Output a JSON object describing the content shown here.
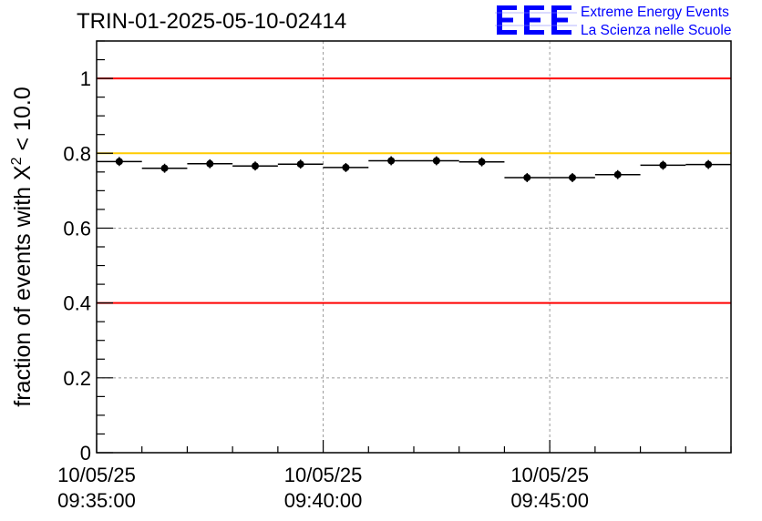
{
  "title": "TRIN-01-2025-05-10-02414",
  "logo": {
    "mark": "EEE",
    "line1": "Extreme Energy Events",
    "line2": "La Scienza nelle Scuole",
    "color": "#0000ff"
  },
  "chart_data": {
    "type": "scatter",
    "ylabel": "fraction of events with X² < 10.0",
    "ylabel_parts": {
      "prefix": "fraction of events with ",
      "chi": "X",
      "sup": "2",
      "suffix": " < 10.0"
    },
    "ylim": [
      0,
      1.1
    ],
    "yticks": [
      0,
      0.2,
      0.4,
      0.6,
      0.8,
      1
    ],
    "ytick_labels": [
      "0",
      "0.2",
      "0.4",
      "0.6",
      "0.8",
      "1"
    ],
    "xlim_minutes": [
      0,
      14
    ],
    "xtick_minutes": [
      0,
      5,
      10
    ],
    "xtick_labels": [
      [
        "10/05/25",
        "09:35:00"
      ],
      [
        "10/05/25",
        "09:40:00"
      ],
      [
        "10/05/25",
        "09:45:00"
      ]
    ],
    "grid": true,
    "reference_lines": [
      {
        "y": 1.0,
        "color": "#ff0000"
      },
      {
        "y": 0.8,
        "color": "#ffcc00"
      },
      {
        "y": 0.4,
        "color": "#ff0000"
      }
    ],
    "bin_width_minutes": 1,
    "points": [
      {
        "x": 0.5,
        "y": 0.778
      },
      {
        "x": 1.5,
        "y": 0.76
      },
      {
        "x": 2.5,
        "y": 0.772
      },
      {
        "x": 3.5,
        "y": 0.766
      },
      {
        "x": 4.5,
        "y": 0.771
      },
      {
        "x": 5.5,
        "y": 0.762
      },
      {
        "x": 6.5,
        "y": 0.78
      },
      {
        "x": 7.5,
        "y": 0.78
      },
      {
        "x": 8.5,
        "y": 0.777
      },
      {
        "x": 9.5,
        "y": 0.735
      },
      {
        "x": 10.5,
        "y": 0.735
      },
      {
        "x": 11.5,
        "y": 0.743
      },
      {
        "x": 12.5,
        "y": 0.768
      },
      {
        "x": 13.5,
        "y": 0.77
      }
    ],
    "error": 0.012,
    "marker_color": "#000000"
  }
}
